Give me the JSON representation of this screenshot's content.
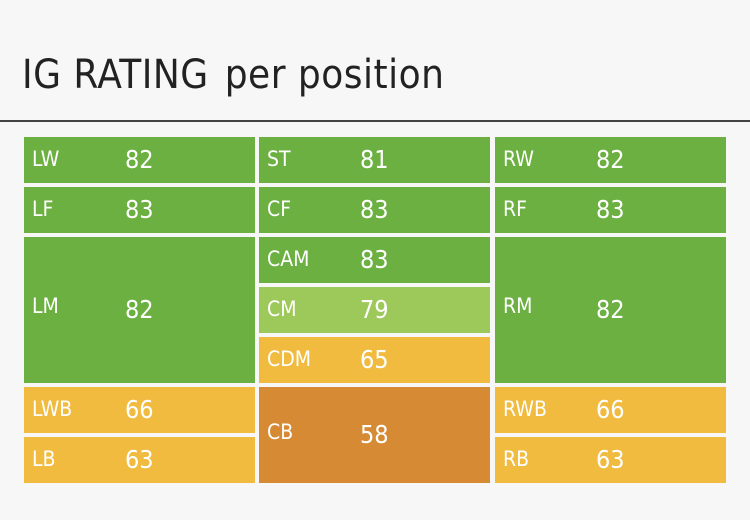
{
  "title": {
    "main": "IG RATING",
    "sub": "per position"
  },
  "colors": {
    "green": "#6bb040",
    "light_green": "#9dc85a",
    "yellow": "#f0bb3f",
    "orange": "#d58a33"
  },
  "cells": {
    "lw": {
      "pos": "LW",
      "val": "82"
    },
    "st": {
      "pos": "ST",
      "val": "81"
    },
    "rw": {
      "pos": "RW",
      "val": "82"
    },
    "lf": {
      "pos": "LF",
      "val": "83"
    },
    "cf": {
      "pos": "CF",
      "val": "83"
    },
    "rf": {
      "pos": "RF",
      "val": "83"
    },
    "lm": {
      "pos": "LM",
      "val": "82"
    },
    "cam": {
      "pos": "CAM",
      "val": "83"
    },
    "cm": {
      "pos": "CM",
      "val": "79"
    },
    "cdm": {
      "pos": "CDM",
      "val": "65"
    },
    "rm": {
      "pos": "RM",
      "val": "82"
    },
    "lwb": {
      "pos": "LWB",
      "val": "66"
    },
    "cb": {
      "pos": "CB",
      "val": "58"
    },
    "rwb": {
      "pos": "RWB",
      "val": "66"
    },
    "lb": {
      "pos": "LB",
      "val": "63"
    },
    "rb": {
      "pos": "RB",
      "val": "63"
    }
  }
}
